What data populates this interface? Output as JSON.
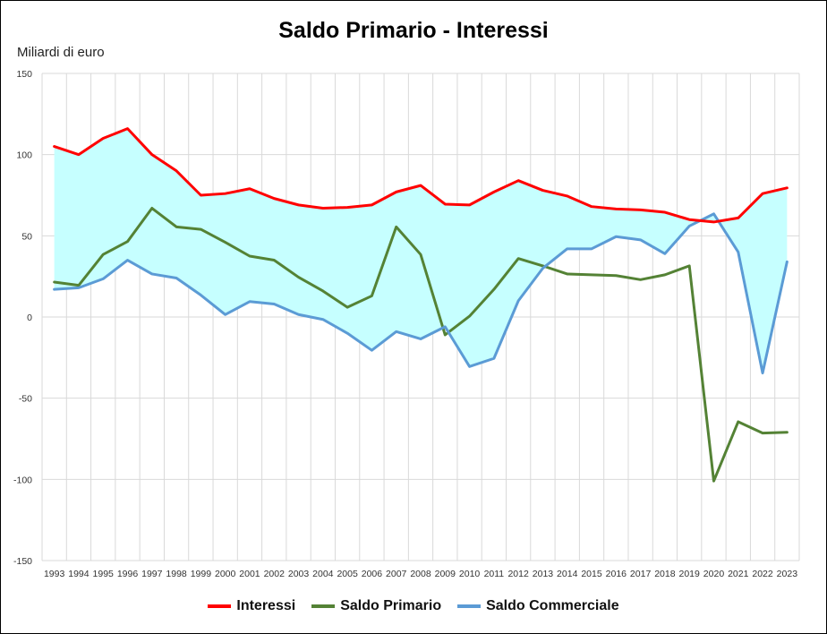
{
  "chart_data": {
    "type": "line",
    "title": "Saldo Primario - Interessi",
    "ylabel": "Miliardi di euro",
    "xlabel": "",
    "ylim": [
      -150,
      150
    ],
    "yticks": [
      150,
      100,
      50,
      0,
      -50,
      -100,
      -150
    ],
    "grid": true,
    "legend_position": "bottom",
    "shaded_area": {
      "between": [
        "Interessi",
        "Saldo Commerciale"
      ],
      "color": "#c6ffff"
    },
    "categories": [
      "1993",
      "1994",
      "1995",
      "1996",
      "1997",
      "1998",
      "1999",
      "2000",
      "2001",
      "2002",
      "2003",
      "2004",
      "2005",
      "2006",
      "2007",
      "2008",
      "2009",
      "2010",
      "2011",
      "2012",
      "2013",
      "2014",
      "2015",
      "2016",
      "2017",
      "2018",
      "2019",
      "2020",
      "2021",
      "2022",
      "2023"
    ],
    "series": [
      {
        "name": "Interessi",
        "color": "#ff0000",
        "values": [
          105,
          100,
          110,
          116,
          100,
          90,
          75,
          76,
          79,
          73,
          69,
          67,
          67.5,
          69,
          77,
          81,
          69.5,
          69,
          77,
          84,
          78,
          74.5,
          68,
          66.5,
          66,
          64.5,
          60,
          58.5,
          61,
          76,
          79.5
        ]
      },
      {
        "name": "Saldo Primario",
        "color": "#548235",
        "values": [
          21.5,
          19.5,
          38.5,
          46.5,
          67,
          55.5,
          54,
          46,
          37.5,
          35,
          24.5,
          16,
          6,
          13,
          55.5,
          38.5,
          -11,
          0.5,
          17,
          36,
          31.5,
          26.5,
          26,
          25.5,
          23,
          26,
          31.5,
          -101,
          -64.5,
          -71.5,
          -71
        ]
      },
      {
        "name": "Saldo Commerciale",
        "color": "#5b9bd5",
        "values": [
          17,
          18,
          23.5,
          35,
          26.5,
          24,
          13.5,
          1.5,
          9.5,
          8,
          1.5,
          -1.5,
          -10,
          -20.5,
          -9,
          -13.5,
          -6,
          -30.5,
          -25.5,
          10,
          30,
          42,
          42,
          49.5,
          47.5,
          39,
          56,
          63.5,
          40,
          -34.5,
          34
        ]
      }
    ]
  }
}
